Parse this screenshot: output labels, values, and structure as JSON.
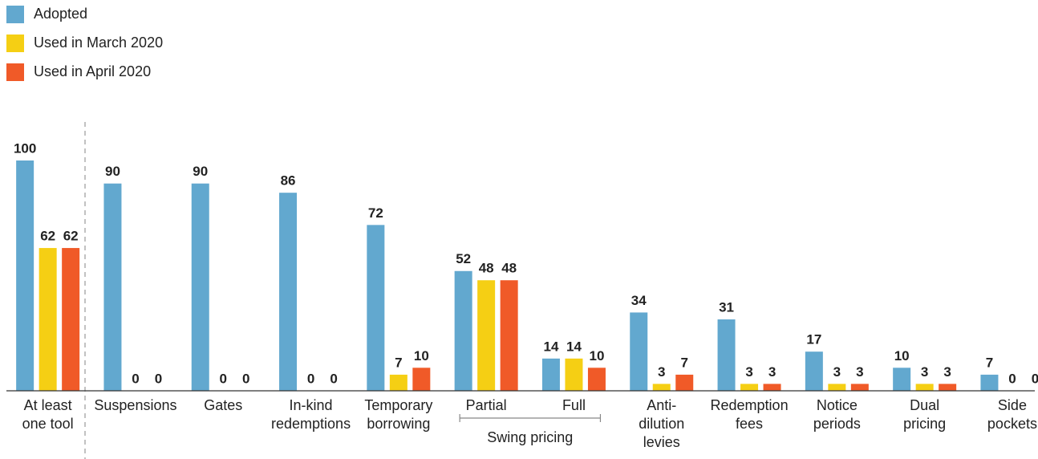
{
  "chart_data": {
    "type": "bar",
    "categories": [
      "At least\none tool",
      "Suspensions",
      "Gates",
      "In-kind\nredemptions",
      "Temporary\nborrowing",
      "Partial",
      "Full",
      "Anti-\ndilution\nlevies",
      "Redemption\nfees",
      "Notice\nperiods",
      "Dual\npricing",
      "Side\npockets"
    ],
    "series": [
      {
        "name": "Adopted",
        "color": "#62a8cf",
        "values": [
          100,
          90,
          90,
          86,
          72,
          52,
          14,
          34,
          31,
          17,
          10,
          7
        ]
      },
      {
        "name": "Used in March 2020",
        "color": "#f5cf14",
        "values": [
          62,
          0,
          0,
          0,
          7,
          48,
          14,
          3,
          3,
          3,
          3,
          0
        ]
      },
      {
        "name": "Used in April 2020",
        "color": "#f05a28",
        "values": [
          62,
          0,
          0,
          0,
          10,
          48,
          10,
          7,
          3,
          3,
          3,
          0
        ]
      }
    ],
    "annotations": [
      "Swing pricing"
    ],
    "ylim": [
      0,
      100
    ],
    "legend": "top-left"
  }
}
